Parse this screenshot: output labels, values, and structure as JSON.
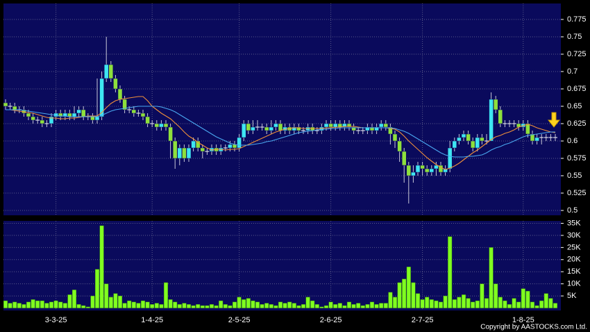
{
  "chart_data": {
    "type": "candlestick",
    "categories": [
      null,
      null,
      null,
      null,
      null,
      null,
      null,
      null,
      null,
      null,
      null,
      "3-3-25",
      null,
      null,
      null,
      null,
      null,
      null,
      null,
      null,
      null,
      null,
      null,
      null,
      null,
      null,
      null,
      null,
      null,
      null,
      null,
      null,
      "1-4-25",
      null,
      null,
      null,
      null,
      null,
      null,
      null,
      null,
      null,
      null,
      null,
      null,
      null,
      null,
      null,
      null,
      null,
      null,
      "2-5-25",
      null,
      null,
      null,
      null,
      null,
      null,
      null,
      null,
      null,
      null,
      null,
      null,
      null,
      null,
      null,
      null,
      null,
      null,
      null,
      "2-6-25",
      null,
      null,
      null,
      null,
      null,
      null,
      null,
      null,
      null,
      null,
      null,
      null,
      null,
      null,
      null,
      null,
      null,
      null,
      null,
      "2-7-25",
      null,
      null,
      null,
      null,
      null,
      null,
      null,
      null,
      null,
      null,
      null,
      null,
      null,
      null,
      null,
      null,
      null,
      null,
      null,
      null,
      null,
      "1-8-25",
      null,
      null,
      null,
      null,
      null,
      null,
      null
    ],
    "open": [
      0.655,
      0.65,
      0.65,
      0.645,
      0.645,
      0.64,
      0.635,
      0.63,
      0.63,
      0.625,
      0.625,
      0.635,
      0.64,
      0.635,
      0.64,
      0.635,
      0.64,
      0.645,
      0.635,
      0.635,
      0.63,
      0.635,
      0.69,
      0.71,
      0.69,
      0.675,
      0.66,
      0.645,
      0.645,
      0.64,
      0.64,
      0.635,
      0.625,
      0.625,
      0.62,
      0.625,
      0.62,
      0.6,
      0.575,
      0.59,
      0.575,
      0.59,
      0.6,
      0.59,
      0.585,
      0.585,
      0.59,
      0.585,
      0.59,
      0.59,
      0.595,
      0.59,
      0.605,
      0.625,
      0.615,
      0.62,
      0.62,
      0.62,
      0.615,
      0.62,
      0.625,
      0.615,
      0.62,
      0.615,
      0.62,
      0.615,
      0.615,
      0.62,
      0.615,
      0.615,
      0.62,
      0.625,
      0.62,
      0.625,
      0.62,
      0.625,
      0.62,
      0.615,
      0.615,
      0.615,
      0.62,
      0.615,
      0.62,
      0.625,
      0.62,
      0.61,
      0.6,
      0.585,
      0.565,
      0.55,
      0.555,
      0.565,
      0.56,
      0.555,
      0.56,
      0.565,
      0.555,
      0.56,
      0.59,
      0.6,
      0.605,
      0.61,
      0.6,
      0.59,
      0.605,
      0.6,
      0.6,
      0.66,
      0.645,
      0.625,
      0.625,
      0.625,
      0.625,
      0.62,
      0.625,
      0.61,
      0.6,
      0.605,
      0.605,
      0.605,
      0.605
    ],
    "high": [
      0.66,
      0.655,
      0.655,
      0.65,
      0.65,
      0.645,
      0.64,
      0.635,
      0.635,
      0.63,
      0.64,
      0.645,
      0.645,
      0.645,
      0.645,
      0.65,
      0.65,
      0.65,
      0.64,
      0.64,
      0.69,
      0.7,
      0.75,
      0.715,
      0.695,
      0.68,
      0.665,
      0.65,
      0.65,
      0.645,
      0.645,
      0.64,
      0.63,
      0.63,
      0.63,
      0.63,
      0.625,
      0.605,
      0.595,
      0.595,
      0.595,
      0.605,
      0.605,
      0.595,
      0.59,
      0.595,
      0.595,
      0.595,
      0.595,
      0.6,
      0.6,
      0.61,
      0.63,
      0.63,
      0.63,
      0.63,
      0.625,
      0.625,
      0.63,
      0.63,
      0.63,
      0.625,
      0.625,
      0.625,
      0.625,
      0.62,
      0.625,
      0.625,
      0.62,
      0.625,
      0.63,
      0.63,
      0.63,
      0.63,
      0.63,
      0.63,
      0.625,
      0.62,
      0.62,
      0.625,
      0.625,
      0.625,
      0.63,
      0.63,
      0.625,
      0.615,
      0.605,
      0.59,
      0.57,
      0.565,
      0.57,
      0.57,
      0.565,
      0.565,
      0.57,
      0.57,
      0.565,
      0.6,
      0.605,
      0.61,
      0.615,
      0.615,
      0.605,
      0.61,
      0.61,
      0.61,
      0.67,
      0.665,
      0.65,
      0.63,
      0.63,
      0.63,
      0.63,
      0.63,
      0.63,
      0.615,
      0.61,
      0.61,
      0.61,
      0.61,
      0.61
    ],
    "low": [
      0.645,
      0.645,
      0.64,
      0.64,
      0.635,
      0.63,
      0.625,
      0.625,
      0.62,
      0.62,
      0.62,
      0.63,
      0.63,
      0.63,
      0.63,
      0.63,
      0.635,
      0.63,
      0.63,
      0.625,
      0.625,
      0.63,
      0.685,
      0.685,
      0.67,
      0.655,
      0.64,
      0.64,
      0.635,
      0.635,
      0.63,
      0.62,
      0.62,
      0.615,
      0.615,
      0.615,
      0.575,
      0.56,
      0.565,
      0.57,
      0.57,
      0.585,
      0.585,
      0.575,
      0.58,
      0.58,
      0.58,
      0.58,
      0.585,
      0.585,
      0.585,
      0.585,
      0.6,
      0.61,
      0.61,
      0.615,
      0.615,
      0.61,
      0.61,
      0.615,
      0.61,
      0.61,
      0.61,
      0.61,
      0.61,
      0.61,
      0.61,
      0.61,
      0.61,
      0.61,
      0.615,
      0.615,
      0.615,
      0.615,
      0.615,
      0.615,
      0.61,
      0.61,
      0.61,
      0.61,
      0.61,
      0.61,
      0.615,
      0.615,
      0.595,
      0.59,
      0.57,
      0.54,
      0.51,
      0.54,
      0.55,
      0.55,
      0.55,
      0.55,
      0.55,
      0.55,
      0.55,
      0.555,
      0.585,
      0.595,
      0.6,
      0.595,
      0.585,
      0.585,
      0.595,
      0.595,
      0.6,
      0.64,
      0.62,
      0.62,
      0.62,
      0.62,
      0.615,
      0.615,
      0.605,
      0.595,
      0.595,
      0.595,
      0.6,
      0.6,
      0.6
    ],
    "close": [
      0.65,
      0.65,
      0.645,
      0.645,
      0.64,
      0.635,
      0.63,
      0.63,
      0.625,
      0.625,
      0.635,
      0.64,
      0.635,
      0.64,
      0.635,
      0.64,
      0.645,
      0.635,
      0.635,
      0.63,
      0.635,
      0.69,
      0.71,
      0.69,
      0.675,
      0.66,
      0.645,
      0.645,
      0.64,
      0.64,
      0.635,
      0.625,
      0.625,
      0.62,
      0.625,
      0.62,
      0.6,
      0.575,
      0.59,
      0.575,
      0.59,
      0.6,
      0.59,
      0.585,
      0.585,
      0.59,
      0.585,
      0.59,
      0.59,
      0.595,
      0.59,
      0.605,
      0.625,
      0.615,
      0.62,
      0.62,
      0.62,
      0.615,
      0.62,
      0.625,
      0.615,
      0.62,
      0.615,
      0.62,
      0.615,
      0.615,
      0.62,
      0.615,
      0.615,
      0.62,
      0.625,
      0.62,
      0.625,
      0.62,
      0.625,
      0.62,
      0.615,
      0.615,
      0.615,
      0.62,
      0.615,
      0.62,
      0.625,
      0.62,
      0.61,
      0.6,
      0.585,
      0.565,
      0.55,
      0.555,
      0.565,
      0.56,
      0.555,
      0.56,
      0.565,
      0.555,
      0.56,
      0.59,
      0.6,
      0.605,
      0.61,
      0.6,
      0.59,
      0.605,
      0.6,
      0.6,
      0.66,
      0.645,
      0.625,
      0.625,
      0.625,
      0.625,
      0.62,
      0.625,
      0.61,
      0.6,
      0.605,
      0.605,
      0.605,
      0.605,
      0.605
    ],
    "up_color": "#3ee6f2",
    "down_color": "#8ee03c",
    "flat_color": "#d8d8e8",
    "wick_color": "#c8c8d8",
    "ylim": [
      0.493,
      0.798
    ],
    "yticks": [
      0.5,
      0.525,
      0.55,
      0.575,
      0.6,
      0.625,
      0.65,
      0.675,
      0.7,
      0.725,
      0.75,
      0.775
    ],
    "grid": true,
    "moving_averages": [
      {
        "color": "#f0903a",
        "values": [
          0.645,
          0.645,
          0.644,
          0.643,
          0.642,
          0.641,
          0.64,
          0.638,
          0.636,
          0.634,
          0.633,
          0.633,
          0.632,
          0.632,
          0.633,
          0.633,
          0.634,
          0.635,
          0.636,
          0.636,
          0.636,
          0.641,
          0.648,
          0.654,
          0.658,
          0.66,
          0.661,
          0.662,
          0.663,
          0.664,
          0.664,
          0.658,
          0.65,
          0.645,
          0.64,
          0.636,
          0.632,
          0.626,
          0.62,
          0.613,
          0.607,
          0.603,
          0.598,
          0.594,
          0.59,
          0.587,
          0.588,
          0.588,
          0.587,
          0.588,
          0.588,
          0.589,
          0.592,
          0.595,
          0.598,
          0.601,
          0.604,
          0.607,
          0.61,
          0.613,
          0.615,
          0.617,
          0.618,
          0.619,
          0.619,
          0.618,
          0.618,
          0.618,
          0.618,
          0.618,
          0.619,
          0.619,
          0.62,
          0.62,
          0.621,
          0.621,
          0.621,
          0.62,
          0.619,
          0.619,
          0.619,
          0.619,
          0.619,
          0.619,
          0.618,
          0.617,
          0.613,
          0.607,
          0.6,
          0.594,
          0.588,
          0.582,
          0.576,
          0.571,
          0.566,
          0.562,
          0.559,
          0.561,
          0.564,
          0.568,
          0.573,
          0.578,
          0.583,
          0.587,
          0.592,
          0.597,
          0.602,
          0.606,
          0.608,
          0.611,
          0.613,
          0.616,
          0.62,
          0.622,
          0.624,
          0.622,
          0.619,
          0.617,
          0.615,
          0.613,
          0.612
        ]
      },
      {
        "color": "#4aa8f0",
        "values": [
          0.645,
          0.645,
          0.645,
          0.645,
          0.644,
          0.643,
          0.642,
          0.641,
          0.64,
          0.639,
          0.638,
          0.637,
          0.636,
          0.636,
          0.635,
          0.635,
          0.635,
          0.635,
          0.635,
          0.635,
          0.635,
          0.637,
          0.64,
          0.643,
          0.645,
          0.646,
          0.647,
          0.648,
          0.649,
          0.65,
          0.65,
          0.65,
          0.65,
          0.65,
          0.649,
          0.647,
          0.645,
          0.642,
          0.638,
          0.634,
          0.63,
          0.626,
          0.622,
          0.618,
          0.614,
          0.61,
          0.606,
          0.603,
          0.6,
          0.597,
          0.595,
          0.594,
          0.594,
          0.594,
          0.595,
          0.596,
          0.597,
          0.599,
          0.6,
          0.602,
          0.604,
          0.606,
          0.608,
          0.61,
          0.612,
          0.613,
          0.614,
          0.615,
          0.616,
          0.617,
          0.617,
          0.618,
          0.618,
          0.619,
          0.619,
          0.619,
          0.619,
          0.619,
          0.619,
          0.619,
          0.619,
          0.619,
          0.619,
          0.619,
          0.619,
          0.618,
          0.616,
          0.614,
          0.611,
          0.607,
          0.603,
          0.599,
          0.595,
          0.591,
          0.587,
          0.583,
          0.58,
          0.578,
          0.577,
          0.577,
          0.577,
          0.578,
          0.578,
          0.579,
          0.58,
          0.583,
          0.587,
          0.59,
          0.592,
          0.595,
          0.597,
          0.6,
          0.603,
          0.606,
          0.608,
          0.609,
          0.61,
          0.611,
          0.612,
          0.613,
          0.613
        ]
      }
    ],
    "volume": {
      "color": "#80ff20",
      "values": [
        3000,
        2000,
        2500,
        2000,
        1500,
        2500,
        3500,
        3000,
        3000,
        2000,
        2500,
        3000,
        2500,
        2000,
        5500,
        7500,
        1500,
        1000,
        500,
        5000,
        16000,
        34000,
        10000,
        4500,
        6000,
        5000,
        2000,
        3000,
        2500,
        2000,
        3000,
        2500,
        1500,
        2000,
        1500,
        10500,
        3500,
        2500,
        1500,
        2000,
        1500,
        1000,
        1500,
        1000,
        1000,
        1500,
        1000,
        3000,
        1500,
        1000,
        2500,
        4500,
        3500,
        4000,
        3000,
        2500,
        1500,
        2000,
        1500,
        1000,
        2500,
        2000,
        2500,
        2000,
        1000,
        1500,
        4500,
        3000,
        1500,
        500,
        1000,
        2500,
        1500,
        2000,
        1000,
        2500,
        1500,
        2000,
        1000,
        1500,
        2500,
        1500,
        2000,
        2000,
        6500,
        4500,
        10500,
        12000,
        17000,
        10500,
        6000,
        3500,
        4500,
        3500,
        3000,
        2500,
        5000,
        29500,
        3500,
        4500,
        5500,
        4000,
        2500,
        3000,
        10000,
        4000,
        25000,
        10000,
        4500,
        3000,
        1500,
        4000,
        2500,
        8000,
        7000,
        2500,
        1000,
        3000,
        6000,
        4000,
        2000
      ],
      "ylim": [
        -1000,
        36000
      ],
      "yticks": [
        {
          "value": 5000,
          "label": "5K"
        },
        {
          "value": 10000,
          "label": "10K"
        },
        {
          "value": 15000,
          "label": "15K"
        },
        {
          "value": 20000,
          "label": "20K"
        },
        {
          "value": 25000,
          "label": "25K"
        },
        {
          "value": 30000,
          "label": "30K"
        },
        {
          "value": 35000,
          "label": "35K"
        }
      ]
    },
    "copyright": "Copyright by AASTOCKS.com Ltd."
  }
}
